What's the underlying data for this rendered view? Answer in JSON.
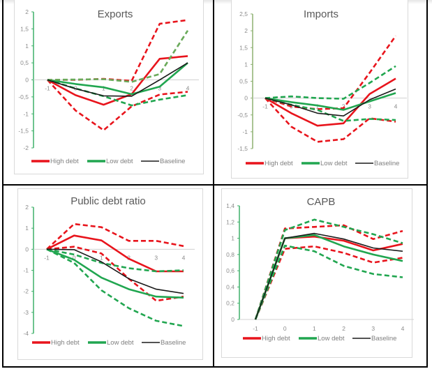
{
  "colors": {
    "high_debt": "#e8141c",
    "low_debt": "#21a650",
    "low_debt_upper_exports": "#6aaa5a",
    "baseline": "#1a1a1a",
    "axis_green": "#3fb06a",
    "axis_olive": "#8db070",
    "zero_line": "#d0d0d0"
  },
  "legend": [
    "High debt",
    "Low debt",
    "Baseline"
  ],
  "chart_data": [
    {
      "id": "exports",
      "type": "line",
      "title": "Exports",
      "x": [
        -1,
        0,
        1,
        2,
        3,
        4
      ],
      "x_tick_labels": [
        "-1",
        "0",
        "1",
        "2",
        "3",
        "4"
      ],
      "ylim": [
        -2,
        2
      ],
      "y_ticks": [
        2,
        1.5,
        1,
        0.5,
        0,
        -0.5,
        -1,
        -1.5,
        -2
      ],
      "y_tick_labels": [
        "2",
        "1,5",
        "1",
        "0,5",
        "0",
        "-0,5",
        "-1",
        "-1,5",
        "-2"
      ],
      "x_labels_position": "at-zero",
      "legend_position": "bottom",
      "series": [
        {
          "name": "High debt",
          "style": "solid",
          "color_key": "high_debt",
          "values": [
            0,
            -0.45,
            -0.73,
            -0.42,
            0.62,
            0.7
          ]
        },
        {
          "name": "High debt upper",
          "style": "dashed",
          "color_key": "high_debt",
          "values": [
            0,
            0.0,
            0.03,
            -0.03,
            1.65,
            1.76
          ]
        },
        {
          "name": "High debt lower",
          "style": "dashed",
          "color_key": "high_debt",
          "values": [
            0,
            -0.9,
            -1.48,
            -0.78,
            -0.43,
            -0.35
          ]
        },
        {
          "name": "Low debt",
          "style": "solid",
          "color_key": "low_debt",
          "values": [
            0,
            -0.12,
            -0.22,
            -0.42,
            -0.2,
            0.5
          ]
        },
        {
          "name": "Low debt upper",
          "style": "dashed",
          "color_key": "low_debt_upper_exports",
          "values": [
            0,
            0.01,
            0.02,
            -0.06,
            0.17,
            1.45
          ]
        },
        {
          "name": "Low debt lower",
          "style": "dashed",
          "color_key": "low_debt",
          "values": [
            0,
            -0.25,
            -0.48,
            -0.75,
            -0.58,
            -0.45
          ]
        },
        {
          "name": "Baseline",
          "style": "solid",
          "color_key": "baseline",
          "values": [
            0,
            -0.26,
            -0.47,
            -0.48,
            0.0,
            0.5
          ]
        }
      ]
    },
    {
      "id": "imports",
      "type": "line",
      "title": "Imports",
      "x": [
        -1,
        0,
        1,
        2,
        3,
        4
      ],
      "x_tick_labels": [
        "-1",
        "0",
        "1",
        "2",
        "3",
        "4"
      ],
      "ylim": [
        -1.5,
        2.5
      ],
      "y_ticks": [
        2.5,
        2,
        1.5,
        1,
        0.5,
        0,
        -0.5,
        -1,
        -1.5
      ],
      "y_tick_labels": [
        "2,5",
        "2",
        "1,5",
        "1",
        "0,5",
        "0",
        "-0,5",
        "-1",
        "-1,5"
      ],
      "x_labels_position": "at-zero",
      "legend_position": "bottom",
      "series": [
        {
          "name": "High debt",
          "style": "solid",
          "color_key": "high_debt",
          "values": [
            0,
            -0.45,
            -0.82,
            -0.75,
            0.12,
            0.58
          ]
        },
        {
          "name": "High debt upper",
          "style": "dashed",
          "color_key": "high_debt",
          "values": [
            0,
            -0.25,
            -0.33,
            -0.3,
            0.75,
            1.85
          ]
        },
        {
          "name": "High debt lower",
          "style": "dashed",
          "color_key": "high_debt",
          "values": [
            0,
            -0.85,
            -1.3,
            -1.22,
            -0.6,
            -0.7
          ]
        },
        {
          "name": "Low debt",
          "style": "solid",
          "color_key": "low_debt",
          "values": [
            0,
            -0.12,
            -0.22,
            -0.35,
            -0.1,
            0.15
          ]
        },
        {
          "name": "Low debt upper",
          "style": "dashed",
          "color_key": "low_debt",
          "values": [
            0,
            0.05,
            0.0,
            -0.02,
            0.45,
            0.95
          ]
        },
        {
          "name": "Low debt lower",
          "style": "dashed",
          "color_key": "low_debt",
          "values": [
            0,
            -0.2,
            -0.35,
            -0.68,
            -0.62,
            -0.65
          ]
        },
        {
          "name": "Baseline",
          "style": "solid",
          "color_key": "baseline",
          "values": [
            0,
            -0.2,
            -0.45,
            -0.53,
            -0.05,
            0.27
          ]
        }
      ]
    },
    {
      "id": "public-debt-ratio",
      "type": "line",
      "title": "Public debt ratio",
      "x": [
        -1,
        0,
        1,
        2,
        3,
        4
      ],
      "x_tick_labels": [
        "-1",
        "0",
        "1",
        "2",
        "3",
        "4"
      ],
      "ylim": [
        -4,
        2
      ],
      "y_ticks": [
        2,
        1,
        0,
        -1,
        -2,
        -3,
        -4
      ],
      "y_tick_labels": [
        "2",
        "1",
        "0",
        "-1",
        "-2",
        "-3",
        "-4"
      ],
      "x_labels_position": "at-zero",
      "legend_position": "bottom",
      "series": [
        {
          "name": "High debt",
          "style": "solid",
          "color_key": "high_debt",
          "values": [
            0,
            0.65,
            0.42,
            -0.45,
            -1.05,
            -1.05
          ]
        },
        {
          "name": "High debt upper",
          "style": "dashed",
          "color_key": "high_debt",
          "values": [
            0,
            1.2,
            1.05,
            0.4,
            0.4,
            0.15
          ]
        },
        {
          "name": "High debt lower",
          "style": "dashed",
          "color_key": "high_debt",
          "values": [
            0,
            0.12,
            -0.2,
            -1.4,
            -2.45,
            -2.25
          ]
        },
        {
          "name": "Low debt",
          "style": "solid",
          "color_key": "low_debt",
          "values": [
            0,
            -0.5,
            -1.35,
            -1.9,
            -2.25,
            -2.3
          ]
        },
        {
          "name": "Low debt upper",
          "style": "dashed",
          "color_key": "low_debt",
          "values": [
            0,
            -0.25,
            -0.65,
            -0.9,
            -1.05,
            -1.0
          ]
        },
        {
          "name": "Low debt lower",
          "style": "dashed",
          "color_key": "low_debt",
          "values": [
            0,
            -0.65,
            -1.95,
            -2.8,
            -3.4,
            -3.65
          ]
        },
        {
          "name": "Baseline",
          "style": "solid",
          "color_key": "baseline",
          "values": [
            0,
            -0.02,
            -0.6,
            -1.4,
            -1.9,
            -2.1
          ]
        }
      ]
    },
    {
      "id": "capb",
      "type": "line",
      "title": "CAPB",
      "x": [
        -1,
        0,
        1,
        2,
        3,
        4
      ],
      "x_tick_labels": [
        "-1",
        "0",
        "1",
        "2",
        "3",
        "4"
      ],
      "ylim": [
        0,
        1.4
      ],
      "y_ticks": [
        1.4,
        1.2,
        1,
        0.8,
        0.6,
        0.4,
        0.2,
        0
      ],
      "y_tick_labels": [
        "1,4",
        "1,2",
        "1",
        "0,8",
        "0,6",
        "0,4",
        "0,2",
        "0"
      ],
      "x_labels_position": "bottom",
      "legend_position": "bottom",
      "series": [
        {
          "name": "High debt",
          "style": "solid",
          "color_key": "high_debt",
          "values": [
            0,
            1.0,
            1.02,
            0.97,
            0.85,
            0.93
          ]
        },
        {
          "name": "High debt upper",
          "style": "dashed",
          "color_key": "high_debt",
          "values": [
            0,
            1.12,
            1.14,
            1.16,
            0.99,
            1.09
          ]
        },
        {
          "name": "High debt lower",
          "style": "dashed",
          "color_key": "high_debt",
          "values": [
            0,
            0.87,
            0.9,
            0.82,
            0.7,
            0.76
          ]
        },
        {
          "name": "Low debt",
          "style": "solid",
          "color_key": "low_debt",
          "values": [
            0,
            1.0,
            1.04,
            0.9,
            0.8,
            0.72
          ]
        },
        {
          "name": "Low debt upper",
          "style": "dashed",
          "color_key": "low_debt",
          "values": [
            0,
            1.1,
            1.23,
            1.14,
            1.05,
            0.94
          ]
        },
        {
          "name": "Low debt lower",
          "style": "dashed",
          "color_key": "low_debt",
          "values": [
            0,
            0.91,
            0.84,
            0.66,
            0.56,
            0.52
          ]
        },
        {
          "name": "Baseline",
          "style": "solid",
          "color_key": "baseline",
          "values": [
            0,
            1.0,
            1.06,
            0.99,
            0.88,
            0.84
          ]
        }
      ]
    }
  ]
}
